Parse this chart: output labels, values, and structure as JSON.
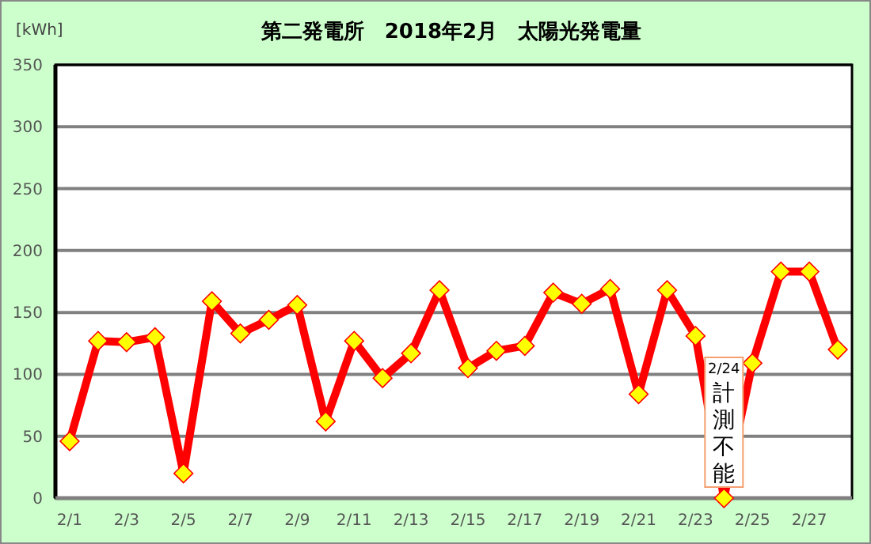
{
  "chart_data": {
    "type": "line",
    "title": "第二発電所　2018年2月　太陽光発電量",
    "ylabel": "[kWh]",
    "categories": [
      "2/1",
      null,
      "2/3",
      null,
      "2/5",
      null,
      "2/7",
      null,
      "2/9",
      null,
      "2/11",
      null,
      "2/13",
      null,
      "2/15",
      null,
      "2/17",
      null,
      "2/19",
      null,
      "2/21",
      null,
      "2/23",
      null,
      "2/25",
      null,
      "2/27",
      null
    ],
    "series": [
      {
        "color": "#ff0000",
        "values": [
          46,
          127,
          126,
          130,
          20,
          159,
          133,
          144,
          156,
          62,
          127,
          97,
          117,
          168,
          105,
          119,
          123,
          166,
          157,
          169,
          84,
          168,
          131,
          0,
          109,
          183,
          183,
          120
        ]
      }
    ],
    "ylim": [
      0,
      350
    ],
    "yticks": [
      0,
      50,
      100,
      150,
      200,
      250,
      300,
      350
    ],
    "grid": "y",
    "marker": "diamond",
    "line_style": "solid",
    "annotations": [
      "2/24 計測不能"
    ]
  }
}
